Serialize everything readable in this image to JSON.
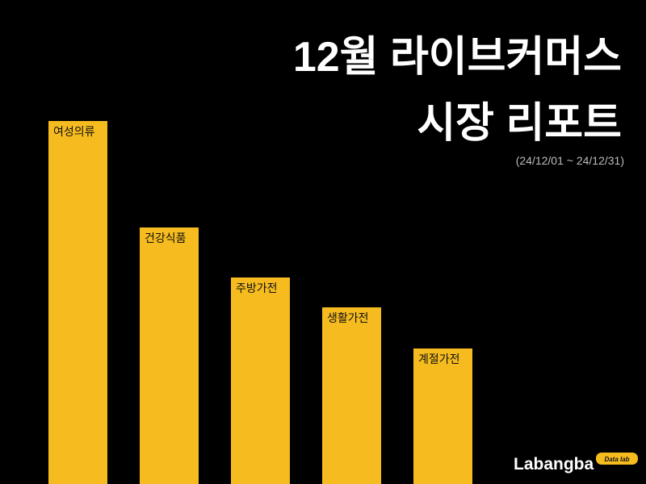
{
  "chart_data": {
    "type": "bar",
    "title": [
      "12월 라이브커머스",
      "시장 리포트"
    ],
    "subtitle": "(24/12/01 ~ 24/12/31)",
    "categories": [
      "여성의류",
      "건강식품",
      "주방가전",
      "생활가전",
      "계절가전"
    ],
    "values": [
      450,
      318,
      256,
      219,
      168
    ],
    "color": "#f5bb1f",
    "ylim": [
      0,
      450
    ]
  },
  "brand": {
    "name": "Labangba",
    "badge": "Data lab"
  }
}
